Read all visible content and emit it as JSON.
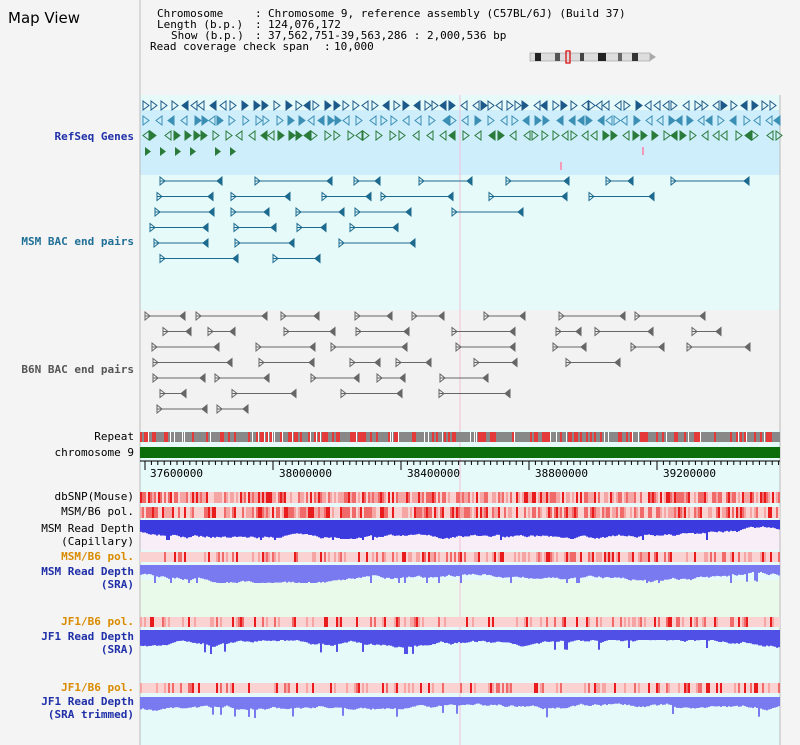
{
  "view_title": "Map View",
  "info": {
    "chromosome_label": "Chromosome",
    "chromosome_value": "Chromosome 9, reference assembly (C57BL/6J) (Build 37)",
    "length_label": "Length (b.p.)",
    "length_value": "124,076,172",
    "show_label": "Show (b.p.)",
    "show_value": "37,562,751-39,563,286 : 2,000,536 bp",
    "coverage_label": "Read coverage check span",
    "coverage_value": "10,000"
  },
  "tracks": {
    "refseq": "RefSeq Genes",
    "msm_bac": "MSM BAC end pairs",
    "b6n_bac": "B6N BAC end pairs",
    "repeat": "Repeat",
    "chromosome": "chromosome 9",
    "dbsnp": "dbSNP(Mouse)",
    "msm_b6_pol_1": "MSM/B6 pol.",
    "msm_depth_cap_1": "MSM Read Depth",
    "msm_depth_cap_2": "(Capillary)",
    "msm_b6_pol_2": "MSM/B6 pol.",
    "msm_depth_sra_1": "MSM Read Depth",
    "msm_depth_sra_2": "(SRA)",
    "jf1_b6_pol_1": "JF1/B6 pol.",
    "jf1_depth_sra_1": "JF1 Read Depth",
    "jf1_depth_sra_2": "(SRA)",
    "jf1_b6_pol_2": "JF1/B6 pol.",
    "jf1_depth_trim_1": "JF1 Read Depth",
    "jf1_depth_trim_2": "(SRA trimmed)"
  },
  "axis": {
    "ticks": [
      "37600000",
      "38000000",
      "38400000",
      "38800000",
      "39200000"
    ]
  },
  "colors": {
    "refseq_bg": "#cfeefb",
    "panel_bg": "#e6fafa",
    "chromosome_bar": "#0b6e0b",
    "snp_red": "#ee2222",
    "depth_blue": "#3a3adf",
    "depth_light": "#7a7af0"
  }
}
